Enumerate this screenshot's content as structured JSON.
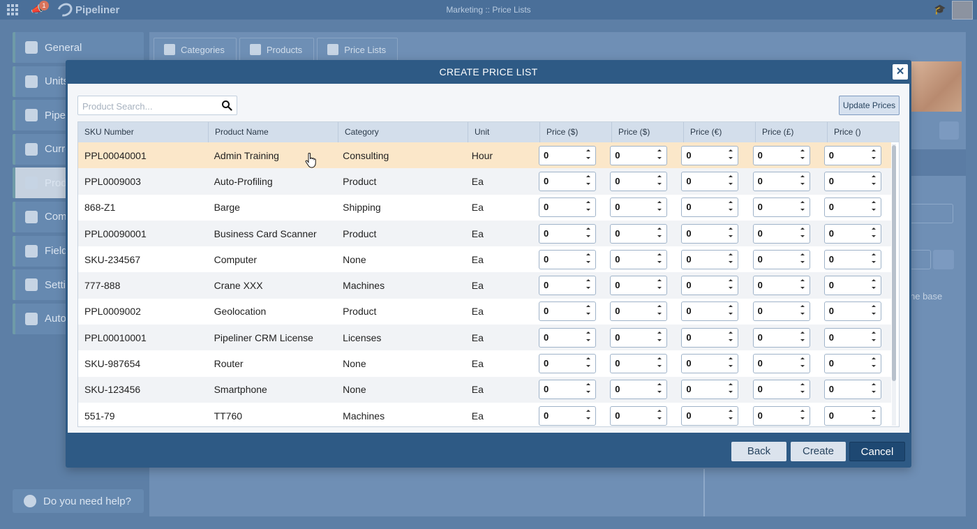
{
  "app": {
    "brand": "Pipeliner",
    "title": "Marketing :: Price Lists",
    "notification_count": "1",
    "colors": {
      "header": "#4a6f99",
      "modal": "#2e5a85",
      "highlight_row": "#fbe7c9",
      "cancel_button": "#1e4872"
    }
  },
  "sidebar": {
    "items": [
      {
        "label": "General",
        "icon": "chart-icon"
      },
      {
        "label": "Units",
        "icon": "user-icon"
      },
      {
        "label": "Pipe",
        "icon": "pipeline-icon"
      },
      {
        "label": "Curre",
        "icon": "dollar-icon"
      },
      {
        "label": "Prod",
        "icon": "products-icon"
      },
      {
        "label": "Com",
        "icon": "document-icon"
      },
      {
        "label": "Field",
        "icon": "palette-icon"
      },
      {
        "label": "Setti",
        "icon": "gear-icon"
      },
      {
        "label": "Auto",
        "icon": "network-icon"
      }
    ],
    "help": "Do you need help?"
  },
  "tabs": [
    {
      "label": "Categories",
      "icon": "hierarchy-icon"
    },
    {
      "label": "Products",
      "icon": "boxes-icon"
    },
    {
      "label": "Price Lists",
      "icon": "price-list-icon"
    }
  ],
  "background": {
    "partial_text": "he base"
  },
  "modal": {
    "title": "CREATE PRICE LIST",
    "search_placeholder": "Product Search...",
    "update_button": "Update Prices",
    "columns": [
      "SKU Number",
      "Product Name",
      "Category",
      "Unit",
      "Price ($)",
      "Price ($)",
      "Price (€)",
      "Price (£)",
      "Price ()"
    ],
    "rows": [
      {
        "sku": "PPL00040001",
        "name": "Admin Training",
        "category": "Consulting",
        "unit": "Hour",
        "prices": [
          "0",
          "0",
          "0",
          "0",
          "0"
        ]
      },
      {
        "sku": "PPL0009003",
        "name": "Auto-Profiling",
        "category": "Product",
        "unit": "Ea",
        "prices": [
          "0",
          "0",
          "0",
          "0",
          "0"
        ]
      },
      {
        "sku": "868-Z1",
        "name": "Barge",
        "category": "Shipping",
        "unit": "Ea",
        "prices": [
          "0",
          "0",
          "0",
          "0",
          "0"
        ]
      },
      {
        "sku": "PPL00090001",
        "name": "Business Card Scanner",
        "category": "Product",
        "unit": "Ea",
        "prices": [
          "0",
          "0",
          "0",
          "0",
          "0"
        ]
      },
      {
        "sku": "SKU-234567",
        "name": "Computer",
        "category": "None",
        "unit": "Ea",
        "prices": [
          "0",
          "0",
          "0",
          "0",
          "0"
        ]
      },
      {
        "sku": "777-888",
        "name": "Crane XXX",
        "category": "Machines",
        "unit": "Ea",
        "prices": [
          "0",
          "0",
          "0",
          "0",
          "0"
        ]
      },
      {
        "sku": "PPL0009002",
        "name": "Geolocation",
        "category": "Product",
        "unit": "Ea",
        "prices": [
          "0",
          "0",
          "0",
          "0",
          "0"
        ]
      },
      {
        "sku": "PPL00010001",
        "name": "Pipeliner CRM License",
        "category": "Licenses",
        "unit": "Ea",
        "prices": [
          "0",
          "0",
          "0",
          "0",
          "0"
        ]
      },
      {
        "sku": "SKU-987654",
        "name": "Router",
        "category": "None",
        "unit": "Ea",
        "prices": [
          "0",
          "0",
          "0",
          "0",
          "0"
        ]
      },
      {
        "sku": "SKU-123456",
        "name": "Smartphone",
        "category": "None",
        "unit": "Ea",
        "prices": [
          "0",
          "0",
          "0",
          "0",
          "0"
        ]
      },
      {
        "sku": "551-79",
        "name": "TT760",
        "category": "Machines",
        "unit": "Ea",
        "prices": [
          "0",
          "0",
          "0",
          "0",
          "0"
        ]
      }
    ],
    "highlighted_row": 0,
    "buttons": {
      "back": "Back",
      "create": "Create",
      "cancel": "Cancel"
    },
    "close_icon": "close-icon"
  }
}
